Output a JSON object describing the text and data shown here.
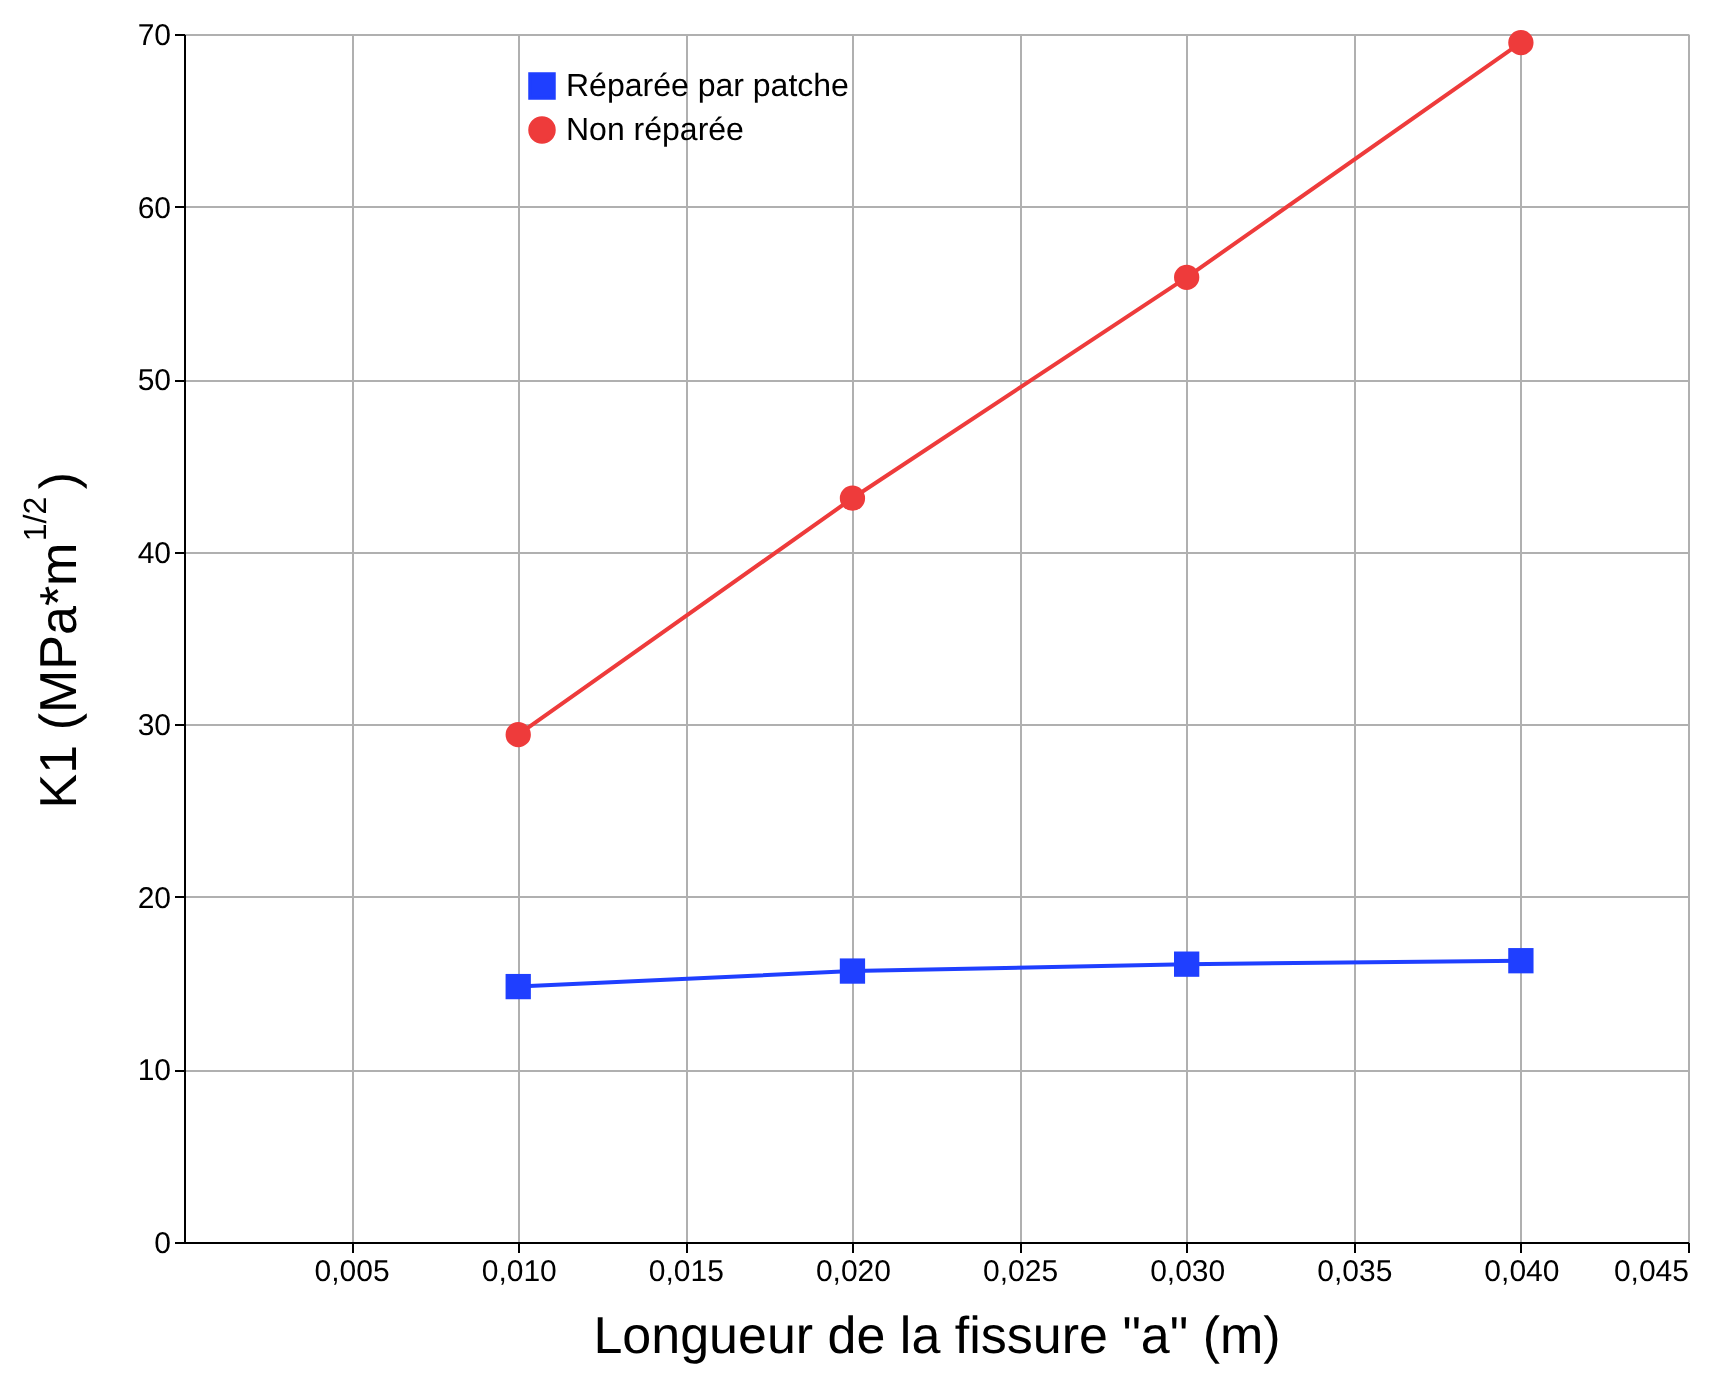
{
  "chart_data": {
    "type": "line",
    "xlabel": "Longueur de la fissure \"a\" (m)",
    "ylabel": "K1 (MPa*m$^{1/2}$)",
    "xlim": [
      0,
      0.045
    ],
    "ylim": [
      0,
      70
    ],
    "xticks": [
      {
        "value": 0.005,
        "label": "0,005"
      },
      {
        "value": 0.01,
        "label": "0,010"
      },
      {
        "value": 0.015,
        "label": "0,015"
      },
      {
        "value": 0.02,
        "label": "0,020"
      },
      {
        "value": 0.025,
        "label": "0,025"
      },
      {
        "value": 0.03,
        "label": "0,030"
      },
      {
        "value": 0.035,
        "label": "0,035"
      },
      {
        "value": 0.04,
        "label": "0,040"
      },
      {
        "value": 0.045,
        "label": "0,045"
      }
    ],
    "yticks": [
      0,
      10,
      20,
      30,
      40,
      50,
      60,
      70
    ],
    "x": [
      0.01,
      0.02,
      0.03,
      0.04
    ],
    "series": [
      {
        "name": "Réparée par patche",
        "color": "#1f3fff",
        "marker": "square",
        "values": [
          14.8,
          15.7,
          16.1,
          16.3
        ]
      },
      {
        "name": "Non réparée",
        "color": "#ee3b3b",
        "marker": "circle",
        "values": [
          29.4,
          43.1,
          55.9,
          69.5
        ]
      }
    ],
    "grid": true,
    "legend": "top left",
    "line_style": "solid"
  }
}
